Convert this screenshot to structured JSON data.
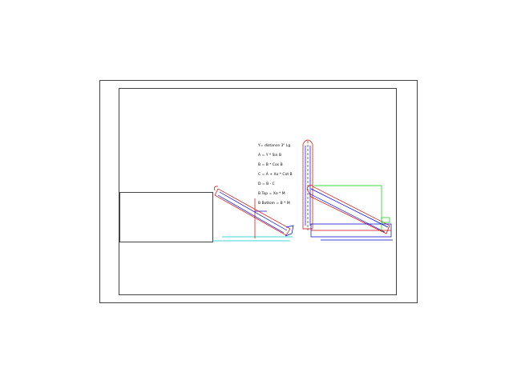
{
  "drawing": {
    "notes": [
      "Y= distance 3\" Lg",
      "A = Y * Sin B",
      "B = B * Cos B",
      "C = A + Xo * Cot B",
      "D = B - C",
      "B Top = Xo * M",
      "B Bottom = B * M"
    ]
  }
}
